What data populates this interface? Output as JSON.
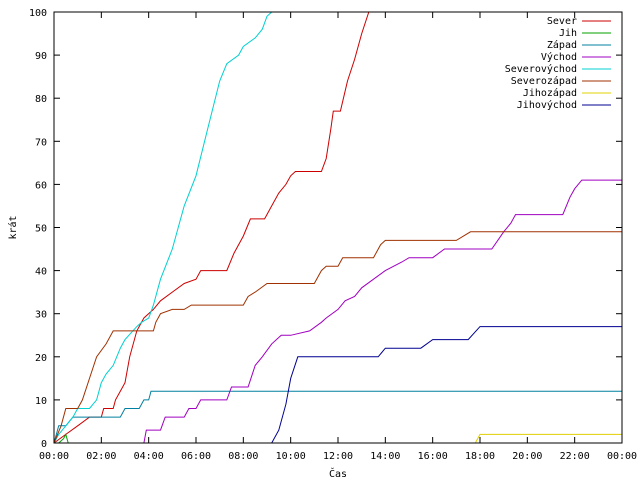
{
  "chart_data": {
    "type": "line",
    "title": "",
    "xlabel": "Čas",
    "ylabel": "krát",
    "xlim": [
      0,
      24
    ],
    "ylim": [
      0,
      100
    ],
    "grid": false,
    "legend_position": "top-right",
    "x_ticks": [
      0,
      2,
      4,
      6,
      8,
      10,
      12,
      14,
      16,
      18,
      20,
      22,
      24
    ],
    "x_tick_labels": [
      "00:00",
      "02:00",
      "04:00",
      "06:00",
      "08:00",
      "10:00",
      "12:00",
      "14:00",
      "16:00",
      "18:00",
      "20:00",
      "22:00",
      "00:00"
    ],
    "y_ticks": [
      0,
      10,
      20,
      30,
      40,
      50,
      60,
      70,
      80,
      90,
      100
    ],
    "y_tick_labels": [
      "0",
      "10",
      "20",
      "30",
      "40",
      "50",
      "60",
      "70",
      "80",
      "90",
      "100"
    ],
    "series": [
      {
        "name": "Sever",
        "color": "#cc0000",
        "points": [
          [
            0,
            0
          ],
          [
            0.5,
            2
          ],
          [
            1.0,
            4
          ],
          [
            1.5,
            6
          ],
          [
            2.0,
            6
          ],
          [
            2.1,
            8
          ],
          [
            2.5,
            8
          ],
          [
            2.6,
            10
          ],
          [
            2.8,
            12
          ],
          [
            3.0,
            14
          ],
          [
            3.2,
            20
          ],
          [
            3.5,
            26
          ],
          [
            3.8,
            29
          ],
          [
            4.2,
            31
          ],
          [
            4.5,
            33
          ],
          [
            5.0,
            35
          ],
          [
            5.5,
            37
          ],
          [
            6.0,
            38
          ],
          [
            6.2,
            40
          ],
          [
            7.3,
            40
          ],
          [
            7.6,
            44
          ],
          [
            8.0,
            48
          ],
          [
            8.3,
            52
          ],
          [
            8.9,
            52
          ],
          [
            9.2,
            55
          ],
          [
            9.5,
            58
          ],
          [
            9.8,
            60
          ],
          [
            10.0,
            62
          ],
          [
            10.2,
            63
          ],
          [
            11.3,
            63
          ],
          [
            11.5,
            66
          ],
          [
            11.7,
            73
          ],
          [
            11.8,
            77
          ],
          [
            12.1,
            77
          ],
          [
            12.4,
            84
          ],
          [
            12.7,
            89
          ],
          [
            13.0,
            95
          ],
          [
            13.3,
            100
          ],
          [
            13.5,
            100
          ]
        ]
      },
      {
        "name": "Jih",
        "color": "#00a000",
        "points": [
          [
            0.2,
            0
          ],
          [
            0.4,
            1
          ],
          [
            0.5,
            2
          ],
          [
            0.6,
            0
          ]
        ]
      },
      {
        "name": "Západ",
        "color": "#0080a0",
        "points": [
          [
            0,
            0
          ],
          [
            0.2,
            4
          ],
          [
            0.5,
            4
          ],
          [
            0.8,
            6
          ],
          [
            2.8,
            6
          ],
          [
            3.0,
            8
          ],
          [
            3.6,
            8
          ],
          [
            3.8,
            10
          ],
          [
            4.0,
            10
          ],
          [
            4.1,
            12
          ],
          [
            10.0,
            12
          ],
          [
            24,
            12
          ]
        ]
      },
      {
        "name": "Východ",
        "color": "#a000c0",
        "points": [
          [
            3.8,
            0
          ],
          [
            3.9,
            3
          ],
          [
            4.5,
            3
          ],
          [
            4.7,
            6
          ],
          [
            5.5,
            6
          ],
          [
            5.7,
            8
          ],
          [
            6.0,
            8
          ],
          [
            6.2,
            10
          ],
          [
            7.3,
            10
          ],
          [
            7.5,
            13
          ],
          [
            8.2,
            13
          ],
          [
            8.5,
            18
          ],
          [
            8.8,
            20
          ],
          [
            9.2,
            23
          ],
          [
            9.6,
            25
          ],
          [
            10.0,
            25
          ],
          [
            10.8,
            26
          ],
          [
            11.3,
            28
          ],
          [
            11.5,
            29
          ],
          [
            12.0,
            31
          ],
          [
            12.3,
            33
          ],
          [
            12.7,
            34
          ],
          [
            13.0,
            36
          ],
          [
            13.5,
            38
          ],
          [
            14.0,
            40
          ],
          [
            14.7,
            42
          ],
          [
            15.0,
            43
          ],
          [
            16.0,
            43
          ],
          [
            16.5,
            45
          ],
          [
            18.5,
            45
          ],
          [
            19.0,
            49
          ],
          [
            19.3,
            51
          ],
          [
            19.5,
            53
          ],
          [
            21.5,
            53
          ],
          [
            21.8,
            57
          ],
          [
            22.0,
            59
          ],
          [
            22.3,
            61
          ],
          [
            24,
            61
          ]
        ]
      },
      {
        "name": "Severovýchod",
        "color": "#00d0d0",
        "points": [
          [
            0,
            0
          ],
          [
            0.2,
            2
          ],
          [
            0.5,
            4
          ],
          [
            0.8,
            6
          ],
          [
            1.0,
            8
          ],
          [
            1.5,
            8
          ],
          [
            1.8,
            10
          ],
          [
            2.0,
            14
          ],
          [
            2.2,
            16
          ],
          [
            2.5,
            18
          ],
          [
            2.8,
            22
          ],
          [
            3.0,
            24
          ],
          [
            3.5,
            27
          ],
          [
            3.7,
            28
          ],
          [
            4.0,
            29
          ],
          [
            4.2,
            32
          ],
          [
            4.5,
            38
          ],
          [
            5.0,
            45
          ],
          [
            5.5,
            55
          ],
          [
            6.0,
            62
          ],
          [
            6.5,
            73
          ],
          [
            7.0,
            84
          ],
          [
            7.3,
            88
          ],
          [
            7.8,
            90
          ],
          [
            8.0,
            92
          ],
          [
            8.5,
            94
          ],
          [
            8.8,
            96
          ],
          [
            9.0,
            99
          ],
          [
            9.2,
            100
          ]
        ]
      },
      {
        "name": "Severozápad",
        "color": "#a03000",
        "points": [
          [
            0,
            0
          ],
          [
            0.3,
            4
          ],
          [
            0.5,
            8
          ],
          [
            1.0,
            8
          ],
          [
            1.2,
            10
          ],
          [
            1.5,
            15
          ],
          [
            1.8,
            20
          ],
          [
            2.2,
            23
          ],
          [
            2.5,
            26
          ],
          [
            3.0,
            26
          ],
          [
            3.2,
            26
          ],
          [
            4.2,
            26
          ],
          [
            4.3,
            28
          ],
          [
            4.5,
            30
          ],
          [
            5.0,
            31
          ],
          [
            5.5,
            31
          ],
          [
            5.8,
            32
          ],
          [
            8.0,
            32
          ],
          [
            8.2,
            34
          ],
          [
            8.5,
            35
          ],
          [
            9.0,
            37
          ],
          [
            11.0,
            37
          ],
          [
            11.3,
            40
          ],
          [
            11.5,
            41
          ],
          [
            12.0,
            41
          ],
          [
            12.2,
            43
          ],
          [
            13.5,
            43
          ],
          [
            13.8,
            46
          ],
          [
            14.0,
            47
          ],
          [
            16.0,
            47
          ],
          [
            17.0,
            47
          ],
          [
            17.6,
            49
          ],
          [
            24,
            49
          ]
        ]
      },
      {
        "name": "Jihozápad",
        "color": "#e0d000",
        "points": [
          [
            17.5,
            0
          ],
          [
            17.8,
            0
          ],
          [
            18.0,
            2
          ],
          [
            24,
            2
          ]
        ]
      },
      {
        "name": "Jihovýchod",
        "color": "#000090",
        "points": [
          [
            9.2,
            0
          ],
          [
            9.5,
            3
          ],
          [
            9.8,
            9
          ],
          [
            10.0,
            15
          ],
          [
            10.3,
            20
          ],
          [
            13.7,
            20
          ],
          [
            14.0,
            22
          ],
          [
            15.5,
            22
          ],
          [
            16.0,
            24
          ],
          [
            17.5,
            24
          ],
          [
            18.0,
            27
          ],
          [
            24,
            27
          ]
        ]
      }
    ]
  }
}
